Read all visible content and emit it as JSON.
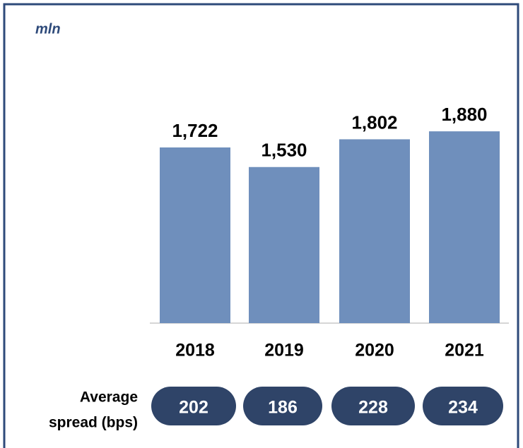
{
  "chart_data": {
    "type": "bar",
    "subtitle": "mln",
    "categories": [
      "2018",
      "2019",
      "2020",
      "2021"
    ],
    "values": [
      1722,
      1530,
      1802,
      1880
    ],
    "value_labels": [
      "1,722",
      "1,530",
      "1,802",
      "1,880"
    ],
    "color": "#6f8fbc",
    "spread": {
      "label_lines": [
        "Average",
        "spread (bps)"
      ],
      "values": [
        202,
        186,
        228,
        234
      ],
      "color": "#2f4468"
    }
  }
}
